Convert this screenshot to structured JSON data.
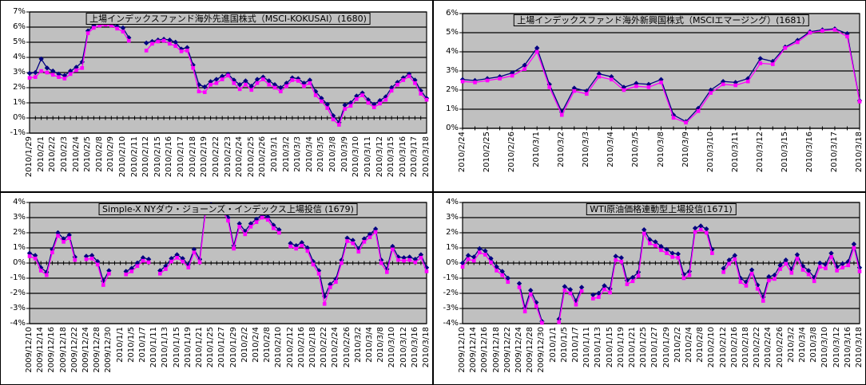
{
  "page": {
    "background": "#ffffff",
    "description": "premium-discount daily line charts of four Japanese ETFs"
  },
  "colors": {
    "plot_background": "#c0c0c0",
    "gridline": "#000000",
    "chart_border": "#000000",
    "series_navy": "#000080",
    "series_magenta": "#ff00ff"
  },
  "chart_data": [
    {
      "type": "line",
      "title": "上場インデックスファンド海外先進国株式（MSCI-KOKUSAI）(1680)",
      "ylim": [
        -1,
        7
      ],
      "y_tick_labels": [
        "7%",
        "6%",
        "5%",
        "4%",
        "3%",
        "2%",
        "1%",
        "0%",
        "-1%"
      ],
      "grid": "horizontal",
      "legend_position": "none",
      "x_label_every_points": 2,
      "x_labels": [
        "2010/1/29",
        "2010/2/1",
        "2010/2/2",
        "2010/2/3",
        "2010/2/4",
        "2010/2/5",
        "2010/2/8",
        "2010/2/9",
        "2010/2/10",
        "2010/2/11",
        "2010/2/12",
        "2010/2/15",
        "2010/2/16",
        "2010/2/17",
        "2010/2/18",
        "2010/2/19",
        "2010/2/22",
        "2010/2/23",
        "2010/2/24",
        "2010/2/25",
        "2010/2/26",
        "2010/3/1",
        "2010/3/2",
        "2010/3/3",
        "2010/3/4",
        "2010/3/5",
        "2010/3/8",
        "2010/3/9",
        "2010/3/10",
        "2010/3/11",
        "2010/3/12",
        "2010/3/15",
        "2010/3/16",
        "2010/3/17",
        "2010/3/18"
      ],
      "series": [
        {
          "name": "series-1 (navy diamond)",
          "color": "#000080",
          "marker": "diamond",
          "values": [
            2.95,
            3.0,
            3.9,
            3.3,
            3.1,
            2.9,
            2.8,
            3.1,
            3.35,
            3.7,
            5.75,
            6.1,
            6.3,
            6.35,
            6.2,
            6.05,
            5.95,
            5.3,
            null,
            null,
            4.95,
            5.05,
            5.15,
            5.2,
            5.15,
            5.0,
            4.55,
            4.65,
            3.5,
            2.2,
            2.05,
            2.4,
            2.55,
            2.75,
            2.9,
            2.5,
            2.2,
            2.45,
            2.1,
            2.55,
            2.7,
            2.45,
            2.2,
            2.0,
            2.3,
            2.65,
            2.6,
            2.3,
            2.5,
            1.75,
            1.3,
            0.9,
            0.15,
            -0.3,
            0.85,
            1.0,
            1.45,
            1.65,
            1.2,
            0.9,
            1.15,
            1.4,
            2.0,
            2.35,
            2.65,
            2.9,
            2.5,
            1.8,
            1.3
          ]
        },
        {
          "name": "series-2 (magenta square)",
          "color": "#ff00ff",
          "marker": "square",
          "values": [
            2.65,
            2.7,
            3.1,
            3.0,
            2.85,
            2.7,
            2.6,
            2.9,
            3.15,
            3.3,
            5.6,
            5.95,
            6.1,
            6.15,
            6.1,
            5.9,
            5.7,
            5.1,
            null,
            null,
            4.45,
            4.9,
            5.05,
            5.1,
            4.9,
            4.75,
            4.4,
            4.45,
            3.3,
            1.75,
            1.7,
            2.2,
            2.3,
            2.55,
            2.8,
            2.3,
            1.9,
            2.2,
            1.85,
            2.3,
            2.55,
            2.2,
            2.0,
            1.75,
            2.1,
            2.5,
            2.45,
            2.1,
            2.3,
            1.5,
            1.1,
            0.65,
            -0.1,
            -0.45,
            0.6,
            0.8,
            1.25,
            1.5,
            1.0,
            0.7,
            0.95,
            1.2,
            1.8,
            2.2,
            2.5,
            2.75,
            2.3,
            1.6,
            1.2
          ]
        }
      ]
    },
    {
      "type": "line",
      "title": "上場インデックスファンド海外新興国株式（MSCIエマージング）(1681)",
      "ylim": [
        0,
        6
      ],
      "y_tick_labels": [
        "6%",
        "5%",
        "4%",
        "3%",
        "2%",
        "1%",
        "0%"
      ],
      "grid": "horizontal",
      "legend_position": "none",
      "x_label_every_points": 2,
      "x_labels": [
        "2010/2/24",
        "2010/2/25",
        "2010/2/26",
        "2010/3/1",
        "2010/3/2",
        "2010/3/3",
        "2010/3/4",
        "2010/3/5",
        "2010/3/8",
        "2010/3/9",
        "2010/3/10",
        "2010/3/11",
        "2010/3/12",
        "2010/3/15",
        "2010/3/16",
        "2010/3/17",
        "2010/3/18"
      ],
      "series": [
        {
          "name": "series-1 (navy diamond)",
          "color": "#000080",
          "marker": "diamond",
          "values": [
            2.55,
            2.5,
            2.6,
            2.7,
            2.9,
            3.3,
            4.2,
            2.3,
            0.85,
            2.1,
            1.95,
            2.85,
            2.7,
            2.15,
            2.35,
            2.3,
            2.55,
            0.7,
            0.35,
            1.05,
            2.0,
            2.45,
            2.4,
            2.6,
            3.65,
            3.5,
            4.25,
            4.6,
            5.05,
            5.15,
            5.2,
            4.95,
            1.45
          ]
        },
        {
          "name": "series-2 (magenta square)",
          "color": "#ff00ff",
          "marker": "square",
          "values": [
            2.45,
            2.4,
            2.5,
            2.6,
            2.75,
            3.1,
            4.0,
            2.15,
            0.7,
            1.95,
            1.8,
            2.7,
            2.55,
            2.0,
            2.2,
            2.15,
            2.4,
            0.55,
            0.3,
            0.9,
            1.85,
            2.3,
            2.25,
            2.45,
            3.4,
            3.35,
            4.2,
            4.5,
            5.0,
            5.1,
            5.15,
            4.8,
            1.4
          ]
        }
      ]
    },
    {
      "type": "line",
      "title": "Simple-X NYダウ・ジョーンズ・インデックス上場投信 (1679)",
      "ylim": [
        -4,
        4
      ],
      "y_tick_labels": [
        "4%",
        "3%",
        "2%",
        "1%",
        "0%",
        "-1%",
        "-2%",
        "-3%",
        "-4%"
      ],
      "grid": "horizontal",
      "legend_position": "none",
      "x_label_every_points": 2,
      "x_labels": [
        "2009/12/10",
        "2009/12/14",
        "2009/12/16",
        "2009/12/18",
        "2009/12/22",
        "2009/12/24",
        "2009/12/28",
        "2009/12/30",
        "2010/1/1",
        "2010/1/5",
        "2010/1/7",
        "2010/1/11",
        "2010/1/13",
        "2010/1/15",
        "2010/1/19",
        "2010/1/21",
        "2010/1/25",
        "2010/1/27",
        "2010/1/29",
        "2010/2/2",
        "2010/2/4",
        "2010/2/8",
        "2010/2/10",
        "2010/2/12",
        "2010/2/16",
        "2010/2/18",
        "2010/2/22",
        "2010/2/24",
        "2010/2/26",
        "2010/3/2",
        "2010/3/4",
        "2010/3/8",
        "2010/3/10",
        "2010/3/12",
        "2010/3/16",
        "2010/3/18"
      ],
      "series": [
        {
          "name": "series-1 (navy diamond)",
          "color": "#000080",
          "marker": "diamond",
          "values": [
            0.65,
            0.5,
            -0.3,
            -0.6,
            0.9,
            2.0,
            1.6,
            1.85,
            0.4,
            null,
            0.45,
            0.5,
            0.1,
            -1.2,
            -0.5,
            null,
            null,
            -0.55,
            -0.35,
            0.0,
            0.35,
            0.25,
            null,
            -0.5,
            -0.2,
            0.3,
            0.55,
            0.3,
            -0.1,
            0.9,
            0.25,
            3.5,
            3.85,
            3.6,
            3.65,
            3.0,
            1.15,
            2.6,
            2.1,
            2.6,
            2.9,
            3.2,
            3.05,
            2.5,
            2.2,
            null,
            1.3,
            1.15,
            1.35,
            1.0,
            0.1,
            -0.5,
            -2.2,
            -1.4,
            -1.05,
            0.2,
            1.65,
            1.5,
            0.95,
            1.6,
            1.9,
            2.25,
            0.2,
            -0.4,
            1.1,
            0.4,
            0.35,
            0.4,
            0.25,
            0.55,
            -0.3
          ]
        },
        {
          "name": "series-2 (magenta square)",
          "color": "#ff00ff",
          "marker": "square",
          "values": [
            0.45,
            0.3,
            -0.5,
            -0.8,
            0.7,
            1.8,
            1.4,
            1.65,
            0.2,
            null,
            0.25,
            0.3,
            -0.1,
            -1.45,
            -0.7,
            null,
            null,
            -0.75,
            -0.55,
            -0.2,
            0.15,
            0.05,
            null,
            -0.7,
            -0.4,
            0.1,
            0.35,
            0.1,
            -0.3,
            0.7,
            0.05,
            3.3,
            3.65,
            3.4,
            3.45,
            2.8,
            0.95,
            2.4,
            1.9,
            2.4,
            2.7,
            3.0,
            2.85,
            2.3,
            2.0,
            null,
            1.1,
            0.95,
            1.15,
            0.8,
            -0.1,
            -0.7,
            -2.7,
            -1.6,
            -1.25,
            0.0,
            1.45,
            1.3,
            0.75,
            1.4,
            1.7,
            2.05,
            0.0,
            -0.6,
            0.9,
            0.2,
            0.15,
            0.2,
            0.05,
            0.35,
            -0.55
          ]
        }
      ]
    },
    {
      "type": "line",
      "title": "WTI原油価格連動型上場投信(1671)",
      "ylim": [
        -4,
        4
      ],
      "y_tick_labels": [
        "4%",
        "3%",
        "2%",
        "1%",
        "0%",
        "-1%",
        "-2%",
        "-3%",
        "-4%"
      ],
      "grid": "horizontal",
      "legend_position": "none",
      "x_label_every_points": 2,
      "x_labels": [
        "2009/12/10",
        "2009/12/14",
        "2009/12/16",
        "2009/12/18",
        "2009/12/22",
        "2009/12/24",
        "2009/12/28",
        "2009/12/30",
        "2010/1/1",
        "2010/1/5",
        "2010/1/7",
        "2010/1/11",
        "2010/1/13",
        "2010/1/15",
        "2010/1/19",
        "2010/1/21",
        "2010/1/25",
        "2010/1/27",
        "2010/1/29",
        "2010/2/2",
        "2010/2/4",
        "2010/2/8",
        "2010/2/10",
        "2010/2/12",
        "2010/2/16",
        "2010/2/18",
        "2010/2/22",
        "2010/2/24",
        "2010/2/26",
        "2010/3/2",
        "2010/3/4",
        "2010/3/8",
        "2010/3/10",
        "2010/3/12",
        "2010/3/16",
        "2010/3/18"
      ],
      "series": [
        {
          "name": "series-1 (navy diamond)",
          "color": "#000080",
          "marker": "diamond",
          "values": [
            0.0,
            0.5,
            0.4,
            0.95,
            0.8,
            0.3,
            -0.25,
            -0.55,
            -1.0,
            null,
            -1.35,
            -2.95,
            -1.8,
            -2.6,
            -3.85,
            null,
            null,
            -3.7,
            -1.55,
            -1.75,
            -2.5,
            -1.6,
            null,
            -2.1,
            -2.0,
            -1.5,
            -1.7,
            0.45,
            0.35,
            -1.15,
            -0.95,
            -0.6,
            2.2,
            1.55,
            1.4,
            1.1,
            0.9,
            0.65,
            0.6,
            -0.75,
            -0.55,
            2.3,
            2.45,
            2.25,
            0.9,
            null,
            -0.35,
            0.2,
            0.5,
            -1.0,
            -1.25,
            -0.45,
            -1.45,
            -2.25,
            -0.9,
            -0.8,
            -0.15,
            0.2,
            -0.4,
            0.55,
            -0.2,
            -0.5,
            -0.95,
            0.0,
            -0.1,
            0.65,
            -0.25,
            -0.05,
            0.1,
            1.25,
            -0.3
          ]
        },
        {
          "name": "series-2 (magenta square)",
          "color": "#ff00ff",
          "marker": "square",
          "values": [
            -0.25,
            0.25,
            0.15,
            0.7,
            0.55,
            0.05,
            -0.5,
            -0.8,
            -1.25,
            null,
            -1.6,
            -3.2,
            -2.05,
            -2.85,
            -3.95,
            null,
            null,
            -3.9,
            -1.8,
            -2.0,
            -2.75,
            -1.85,
            null,
            -2.35,
            -2.25,
            -1.75,
            -1.95,
            0.2,
            0.1,
            -1.4,
            -1.2,
            -0.85,
            1.95,
            1.3,
            1.15,
            0.85,
            0.65,
            0.4,
            0.35,
            -1.0,
            -0.8,
            2.05,
            2.2,
            2.0,
            0.65,
            null,
            -0.6,
            -0.05,
            0.25,
            -1.25,
            -1.5,
            -0.7,
            -1.7,
            -2.5,
            -1.15,
            -1.05,
            -0.4,
            -0.05,
            -0.65,
            0.3,
            -0.45,
            -0.75,
            -1.2,
            -0.25,
            -0.35,
            0.4,
            -0.5,
            -0.3,
            -0.15,
            1.0,
            -0.55
          ]
        }
      ]
    }
  ]
}
